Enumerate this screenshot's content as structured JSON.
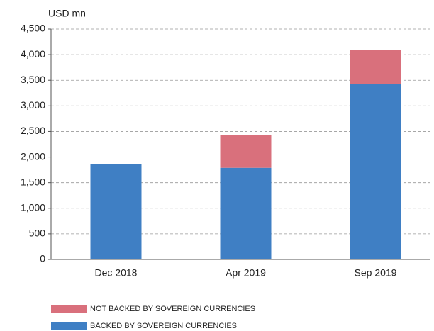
{
  "chart_data": {
    "type": "stacked_bar",
    "y_axis_label": "USD mn",
    "categories": [
      "Dec 2018",
      "Apr 2019",
      "Sep 2019"
    ],
    "series": [
      {
        "name": "BACKED BY SOVEREIGN CURRENCIES",
        "color": "#3f7fc4",
        "values": [
          1860,
          1790,
          3420
        ]
      },
      {
        "name": "NOT BACKED BY SOVEREIGN CURRENCIES",
        "color": "#d9707c",
        "values": [
          0,
          640,
          670
        ]
      }
    ],
    "ylim": [
      0,
      4500
    ],
    "yticks": [
      0,
      500,
      {
        "value": 1000,
        "label": "1,000"
      },
      {
        "value": 1500,
        "label": "1,500"
      },
      {
        "value": 2000,
        "label": "2,000"
      },
      {
        "value": 2500,
        "label": "2,500"
      },
      {
        "value": 3000,
        "label": "3,000"
      },
      {
        "value": 3500,
        "label": "3,500"
      },
      {
        "value": 4000,
        "label": "4,000"
      },
      {
        "value": 4500,
        "label": "4,500"
      }
    ],
    "grid": true
  }
}
